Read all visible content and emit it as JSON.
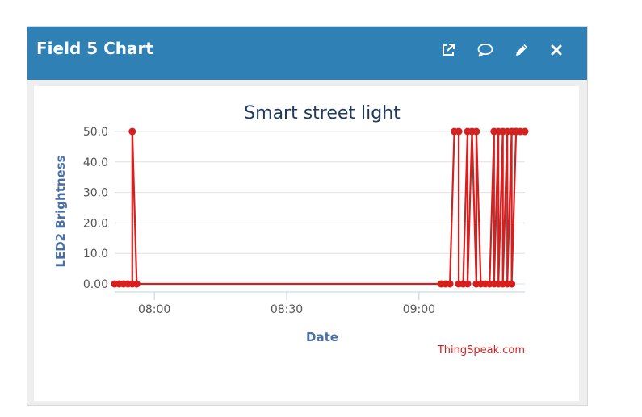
{
  "widget": {
    "title": "Field 5 Chart",
    "actions": [
      {
        "name": "open-new-window",
        "icon": "external-link-icon"
      },
      {
        "name": "comment",
        "icon": "comment-icon"
      },
      {
        "name": "edit",
        "icon": "pencil-icon"
      },
      {
        "name": "close",
        "icon": "close-icon"
      }
    ]
  },
  "colors": {
    "header": "#2e80b5",
    "series": "#d62020",
    "title": "#1f3a5f",
    "axis_label": "#4a6fa5",
    "credit": "#d62020"
  },
  "credit": "ThingSpeak.com",
  "chart_data": {
    "type": "line",
    "title": "Smart street light",
    "xlabel": "Date",
    "ylabel": "LED2 Brightness",
    "x_ticks": [
      "08:00",
      "08:30",
      "09:00"
    ],
    "y_ticks": [
      "0.00",
      "10.0",
      "20.0",
      "30.0",
      "40.0",
      "50.0"
    ],
    "ylim": [
      0,
      50
    ],
    "xlim": [
      "07:51",
      "09:24"
    ],
    "grid": true,
    "series": [
      {
        "points": [
          [
            "07:51",
            0
          ],
          [
            "07:52",
            0
          ],
          [
            "07:53",
            0
          ],
          [
            "07:54",
            0
          ],
          [
            "07:55",
            0
          ],
          [
            "07:55",
            50
          ],
          [
            "07:56",
            0
          ],
          [
            "09:05",
            0
          ],
          [
            "09:06",
            0
          ],
          [
            "09:07",
            0
          ],
          [
            "09:08",
            50
          ],
          [
            "09:09",
            50
          ],
          [
            "09:09",
            0
          ],
          [
            "09:10",
            0
          ],
          [
            "09:11",
            50
          ],
          [
            "09:11",
            0
          ],
          [
            "09:12",
            50
          ],
          [
            "09:13",
            0
          ],
          [
            "09:13",
            50
          ],
          [
            "09:14",
            0
          ],
          [
            "09:15",
            0
          ],
          [
            "09:16",
            0
          ],
          [
            "09:17",
            50
          ],
          [
            "09:17",
            0
          ],
          [
            "09:18",
            50
          ],
          [
            "09:18",
            0
          ],
          [
            "09:19",
            50
          ],
          [
            "09:19",
            0
          ],
          [
            "09:20",
            50
          ],
          [
            "09:20",
            0
          ],
          [
            "09:21",
            50
          ],
          [
            "09:21",
            0
          ],
          [
            "09:22",
            50
          ],
          [
            "09:22",
            50
          ],
          [
            "09:23",
            50
          ],
          [
            "09:24",
            50
          ]
        ]
      }
    ]
  }
}
